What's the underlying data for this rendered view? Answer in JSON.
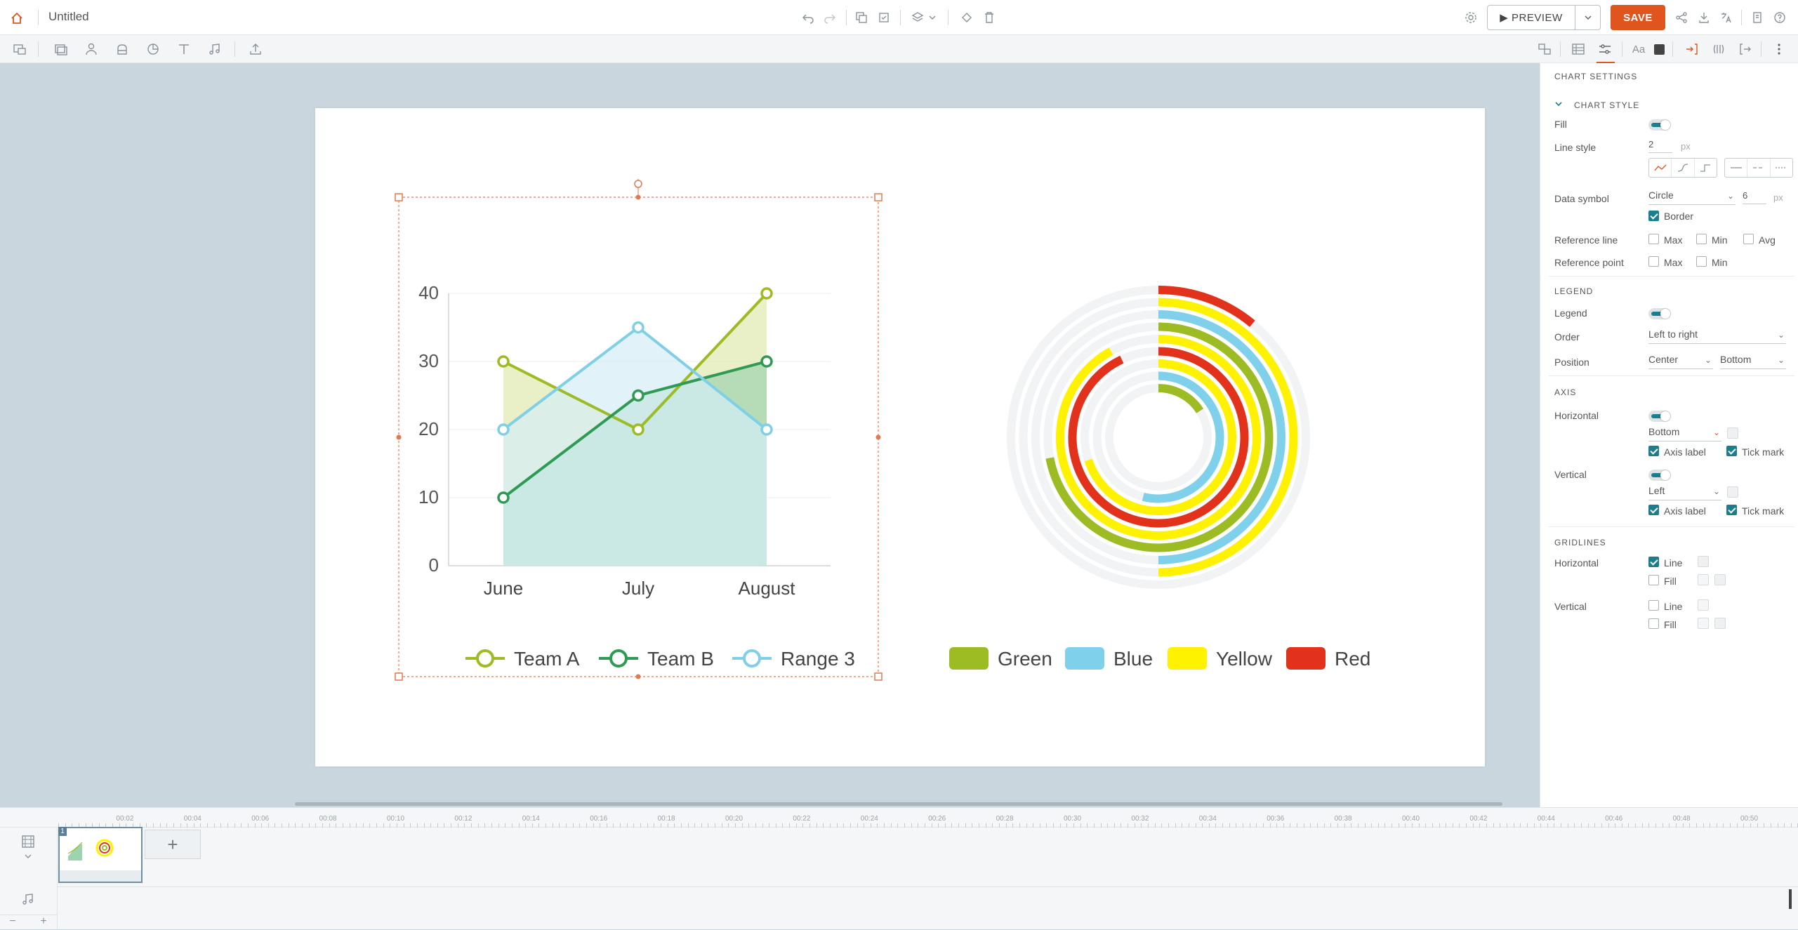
{
  "app": {
    "title": "Untitled"
  },
  "header": {
    "preview_label": "PREVIEW",
    "save_label": "SAVE",
    "accent": "#e0541e"
  },
  "panel": {
    "heading": "CHART SETTINGS",
    "chart_style": {
      "heading": "CHART STYLE",
      "fill_label": "Fill",
      "line_style_label": "Line style",
      "line_width": "2",
      "unit": "px",
      "data_symbol_label": "Data symbol",
      "data_symbol_value": "Circle",
      "symbol_size": "6",
      "border_label": "Border",
      "reference_line_label": "Reference line",
      "reference_point_label": "Reference point",
      "max_label": "Max",
      "min_label": "Min",
      "avg_label": "Avg"
    },
    "legend": {
      "heading": "LEGEND",
      "legend_label": "Legend",
      "order_label": "Order",
      "order_value": "Left to right",
      "position_label": "Position",
      "position_h": "Center",
      "position_v": "Bottom"
    },
    "axis": {
      "heading": "AXIS",
      "horizontal_label": "Horizontal",
      "horizontal_pos": "Bottom",
      "vertical_label": "Vertical",
      "vertical_pos": "Left",
      "axis_label": "Axis label",
      "tick_mark": "Tick mark"
    },
    "gridlines": {
      "heading": "GRIDLINES",
      "horizontal_label": "Horizontal",
      "vertical_label": "Vertical",
      "line_label": "Line",
      "fill_label": "Fill"
    }
  },
  "timeline": {
    "ticks": [
      "00:02",
      "00:04",
      "00:06",
      "00:08",
      "00:10",
      "00:12",
      "00:14",
      "00:16",
      "00:18",
      "00:20",
      "00:22",
      "00:24",
      "00:26",
      "00:28",
      "00:30",
      "00:32",
      "00:34",
      "00:36",
      "00:38",
      "00:40",
      "00:42",
      "00:44",
      "00:46",
      "00:48",
      "00:50"
    ],
    "slide_number": "1",
    "add_label": "+"
  },
  "chart_data": [
    {
      "type": "area",
      "categories": [
        "June",
        "July",
        "August"
      ],
      "ylim": [
        0,
        40
      ],
      "yticks": [
        "0",
        "10",
        "20",
        "30",
        "40"
      ],
      "grid": true,
      "legend_position": "bottom-center",
      "series": [
        {
          "name": "Team A",
          "values": [
            30,
            20,
            40
          ],
          "color": "#9dbb23",
          "fill": "#dfeaaf"
        },
        {
          "name": "Team B",
          "values": [
            10,
            25,
            30
          ],
          "color": "#2e9a54",
          "fill": "#9fd3b0"
        },
        {
          "name": "Range 3",
          "values": [
            20,
            35,
            20
          ],
          "color": "#80cfe6",
          "fill": "#d4eef6"
        }
      ]
    },
    {
      "type": "radial-bar",
      "legend_position": "bottom-center",
      "categories": [
        "Green",
        "Blue",
        "Yellow",
        "Red"
      ],
      "colors": {
        "Green": "#9dbb23",
        "Blue": "#7fd0ea",
        "Yellow": "#fff200",
        "Red": "#e2321b"
      },
      "rings": [
        {
          "color": "Red",
          "fraction": 0.11
        },
        {
          "color": "Yellow",
          "fraction": 0.5
        },
        {
          "color": "Blue",
          "fraction": 0.5
        },
        {
          "color": "Green",
          "fraction": 0.72
        },
        {
          "color": "Yellow",
          "fraction": 0.92
        },
        {
          "color": "Red",
          "fraction": 0.93
        },
        {
          "color": "Yellow",
          "fraction": 0.7
        },
        {
          "color": "Blue",
          "fraction": 0.54
        },
        {
          "color": "Green",
          "fraction": 0.16
        }
      ]
    }
  ]
}
